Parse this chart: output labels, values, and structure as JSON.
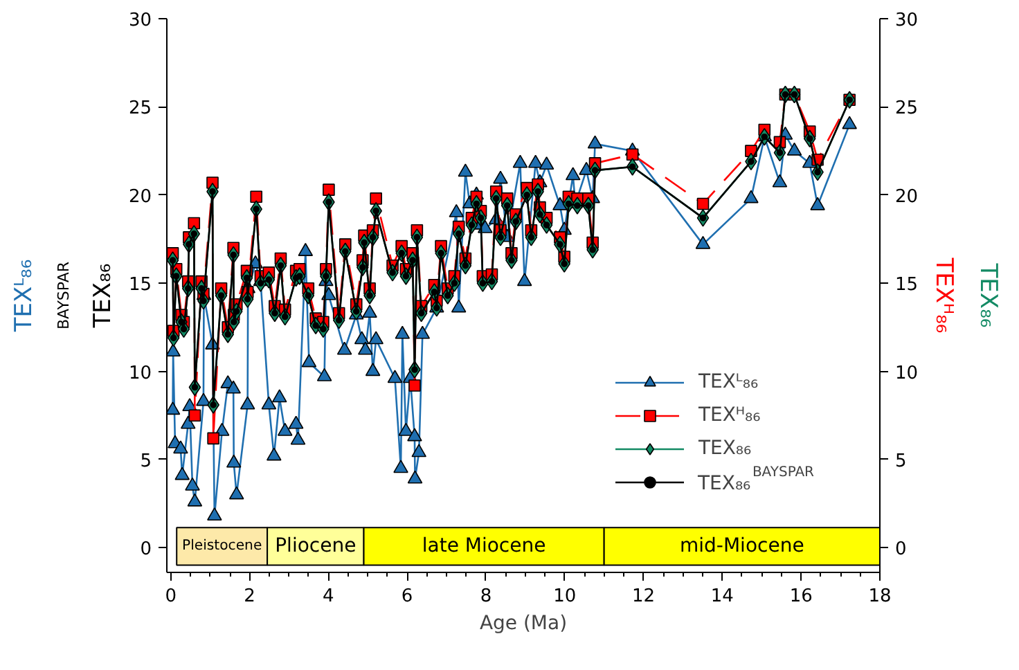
{
  "chart_data": {
    "type": "line",
    "xlabel": "Age (Ma)",
    "xlim": [
      -0.1,
      18
    ],
    "xticks": [
      0,
      2,
      4,
      6,
      8,
      10,
      12,
      14,
      16,
      18
    ],
    "ylim": [
      -1.4,
      30
    ],
    "yticks": [
      0,
      5,
      10,
      15,
      20,
      25,
      30
    ],
    "y2lim": [
      -1.4,
      30
    ],
    "y2ticks": [
      0,
      5,
      10,
      15,
      20,
      25,
      30
    ],
    "grid": false,
    "legend": "bottom right",
    "x": [
      0.05,
      0.07,
      0.14,
      0.27,
      0.33,
      0.44,
      0.46,
      0.59,
      0.61,
      0.78,
      0.83,
      1.06,
      1.08,
      1.28,
      1.45,
      1.59,
      1.6,
      1.67,
      1.93,
      1.95,
      2.17,
      2.28,
      2.49,
      2.64,
      2.79,
      2.9,
      3.18,
      3.27,
      3.49,
      3.68,
      3.87,
      3.94,
      4.01,
      4.27,
      4.43,
      4.71,
      4.87,
      4.91,
      5.05,
      5.13,
      5.21,
      5.63,
      5.86,
      5.97,
      6.14,
      6.19,
      6.25,
      6.36,
      6.69,
      6.75,
      6.86,
      7.03,
      7.2,
      7.31,
      7.48,
      7.64,
      7.76,
      7.87,
      7.92,
      8.15,
      8.26,
      8.37,
      8.54,
      8.65,
      8.76,
      9.04,
      9.15,
      9.32,
      9.37,
      9.54,
      9.88,
      9.99,
      10.1,
      10.32,
      10.6,
      10.71,
      10.77,
      11.72,
      13.51,
      14.73,
      15.07,
      15.46,
      15.6,
      15.83,
      16.22,
      16.42,
      17.23
    ],
    "series": [
      {
        "name": "TEXᴸ₈₆",
        "color": "#1f6fb0",
        "marker": "triangle",
        "line_style": "solid",
        "axis": "y",
        "x": [
          0.05,
          0.06,
          0.11,
          0.25,
          0.29,
          0.44,
          0.48,
          0.55,
          0.61,
          0.83,
          0.84,
          1.06,
          1.11,
          1.3,
          1.45,
          1.59,
          1.6,
          1.67,
          1.95,
          1.96,
          2.15,
          2.28,
          2.49,
          2.62,
          2.76,
          2.9,
          3.18,
          3.23,
          3.42,
          3.51,
          3.9,
          3.94,
          4.01,
          4.41,
          4.71,
          4.85,
          4.94,
          5.05,
          5.13,
          5.21,
          5.69,
          5.84,
          5.88,
          5.97,
          6.08,
          6.19,
          6.2,
          6.3,
          6.39,
          6.75,
          7.25,
          7.31,
          7.48,
          7.59,
          7.76,
          7.87,
          7.98,
          8.26,
          8.37,
          8.54,
          8.87,
          8.98,
          9.26,
          9.37,
          9.54,
          9.88,
          9.99,
          10.21,
          10.27,
          10.55,
          10.71,
          10.77,
          11.72,
          13.51,
          14.73,
          15.07,
          15.46,
          15.6,
          15.83,
          16.22,
          16.42,
          17.23
        ],
        "values": [
          7.8,
          11.1,
          5.9,
          5.6,
          4.1,
          7.0,
          8.0,
          3.5,
          2.6,
          8.3,
          14.3,
          11.5,
          1.8,
          6.6,
          9.3,
          9.0,
          4.8,
          3.0,
          8.1,
          14.7,
          16.1,
          15.1,
          8.1,
          5.2,
          8.5,
          6.6,
          7.0,
          6.1,
          16.8,
          10.5,
          9.7,
          15.1,
          14.3,
          11.2,
          13.2,
          11.8,
          11.2,
          13.3,
          10.0,
          11.8,
          9.6,
          4.5,
          12.1,
          6.6,
          9.6,
          6.3,
          3.9,
          5.4,
          12.1,
          13.6,
          19.0,
          13.6,
          21.3,
          19.5,
          20.0,
          18.3,
          18.1,
          18.6,
          20.9,
          17.6,
          21.8,
          15.1,
          21.8,
          20.7,
          21.7,
          19.4,
          18.0,
          21.1,
          19.5,
          21.4,
          19.8,
          22.9,
          22.5,
          17.2,
          19.8,
          23.3,
          20.7,
          23.4,
          22.5,
          21.8,
          19.4,
          24.0
        ]
      },
      {
        "name": "TEXᴴ₈₆",
        "color": "#ff0000",
        "marker": "square",
        "line_style": "dashed",
        "axis": "y2",
        "values": [
          16.7,
          12.3,
          15.8,
          13.2,
          12.8,
          15.1,
          17.6,
          18.4,
          7.5,
          15.1,
          14.4,
          20.7,
          6.2,
          14.7,
          12.5,
          17.0,
          13.2,
          13.8,
          15.7,
          14.5,
          19.9,
          15.4,
          15.6,
          13.7,
          16.4,
          13.5,
          15.7,
          15.8,
          14.7,
          13.0,
          12.8,
          15.8,
          20.3,
          13.3,
          17.2,
          13.8,
          16.3,
          17.7,
          14.7,
          18.0,
          19.8,
          16.0,
          17.1,
          15.8,
          16.7,
          9.2,
          18.0,
          13.7,
          14.9,
          14.0,
          17.1,
          14.7,
          15.4,
          18.2,
          16.4,
          18.7,
          19.9,
          19.1,
          15.4,
          15.5,
          20.2,
          18.0,
          19.8,
          16.7,
          18.9,
          20.4,
          18.0,
          20.6,
          19.3,
          18.7,
          17.6,
          16.5,
          19.9,
          19.8,
          19.8,
          17.3,
          21.8,
          22.3,
          19.5,
          22.5,
          23.7,
          23.0,
          25.7,
          25.7,
          23.6,
          22.0,
          25.4
        ]
      },
      {
        "name": "TEX₈₆",
        "color": "#138a64",
        "marker": "diamond",
        "line_style": "solid",
        "axis": "y2",
        "values": [
          16.3,
          11.9,
          15.4,
          12.8,
          12.4,
          14.7,
          17.2,
          17.8,
          9.1,
          14.7,
          14.0,
          20.2,
          8.1,
          14.3,
          12.1,
          16.6,
          12.8,
          13.4,
          15.3,
          14.1,
          19.2,
          15.0,
          15.2,
          13.3,
          16.0,
          13.1,
          15.3,
          15.4,
          14.3,
          12.6,
          12.4,
          15.4,
          19.6,
          12.9,
          16.8,
          13.4,
          15.9,
          17.3,
          14.3,
          17.6,
          19.1,
          15.6,
          16.7,
          15.4,
          16.3,
          10.1,
          17.6,
          13.3,
          14.5,
          13.6,
          16.7,
          14.3,
          15.0,
          17.8,
          16.0,
          18.3,
          19.5,
          18.7,
          15.0,
          15.1,
          19.8,
          17.6,
          19.4,
          16.3,
          18.5,
          20.0,
          17.6,
          20.2,
          18.9,
          18.3,
          17.2,
          16.1,
          19.5,
          19.4,
          19.4,
          16.9,
          21.4,
          21.6,
          18.7,
          21.9,
          23.3,
          22.4,
          25.7,
          25.7,
          23.2,
          21.3,
          25.4
        ]
      },
      {
        "name": "TEX₈₆$^{BAYSPAR}$",
        "color": "#000000",
        "marker": "circle",
        "line_style": "solid",
        "axis": "y",
        "values": [
          16.3,
          11.9,
          15.4,
          12.8,
          12.4,
          14.7,
          17.2,
          17.8,
          9.1,
          14.7,
          14.0,
          20.2,
          8.1,
          14.3,
          12.1,
          16.6,
          12.8,
          13.4,
          15.3,
          14.1,
          19.2,
          15.0,
          15.2,
          13.3,
          16.0,
          13.1,
          15.3,
          15.4,
          14.3,
          12.6,
          12.4,
          15.4,
          19.6,
          12.9,
          16.8,
          13.4,
          15.9,
          17.3,
          14.3,
          17.6,
          19.1,
          15.6,
          16.7,
          15.4,
          16.3,
          10.1,
          17.6,
          13.3,
          14.5,
          13.6,
          16.7,
          14.3,
          15.0,
          17.8,
          16.0,
          18.3,
          19.5,
          18.7,
          15.0,
          15.1,
          19.8,
          17.6,
          19.4,
          16.3,
          18.5,
          20.0,
          17.6,
          20.2,
          18.9,
          18.3,
          17.2,
          16.1,
          19.5,
          19.4,
          19.4,
          16.9,
          21.4,
          21.6,
          18.7,
          21.9,
          23.3,
          22.4,
          25.7,
          25.7,
          23.2,
          21.3,
          25.4
        ]
      }
    ],
    "bands": [
      {
        "axis": "x",
        "from": 0.15,
        "to": 2.45,
        "label": "Pleistocene",
        "color": "#fde9a9"
      },
      {
        "axis": "x",
        "from": 2.45,
        "to": 4.9,
        "label": "Pliocene",
        "color": "#ffff99"
      },
      {
        "axis": "x",
        "from": 4.9,
        "to": 11.0,
        "label": "late Miocene",
        "color": "#ffff00"
      },
      {
        "axis": "x",
        "from": 11.0,
        "to": 18,
        "label": "mid-Miocene",
        "color": "#ffff00"
      }
    ]
  }
}
